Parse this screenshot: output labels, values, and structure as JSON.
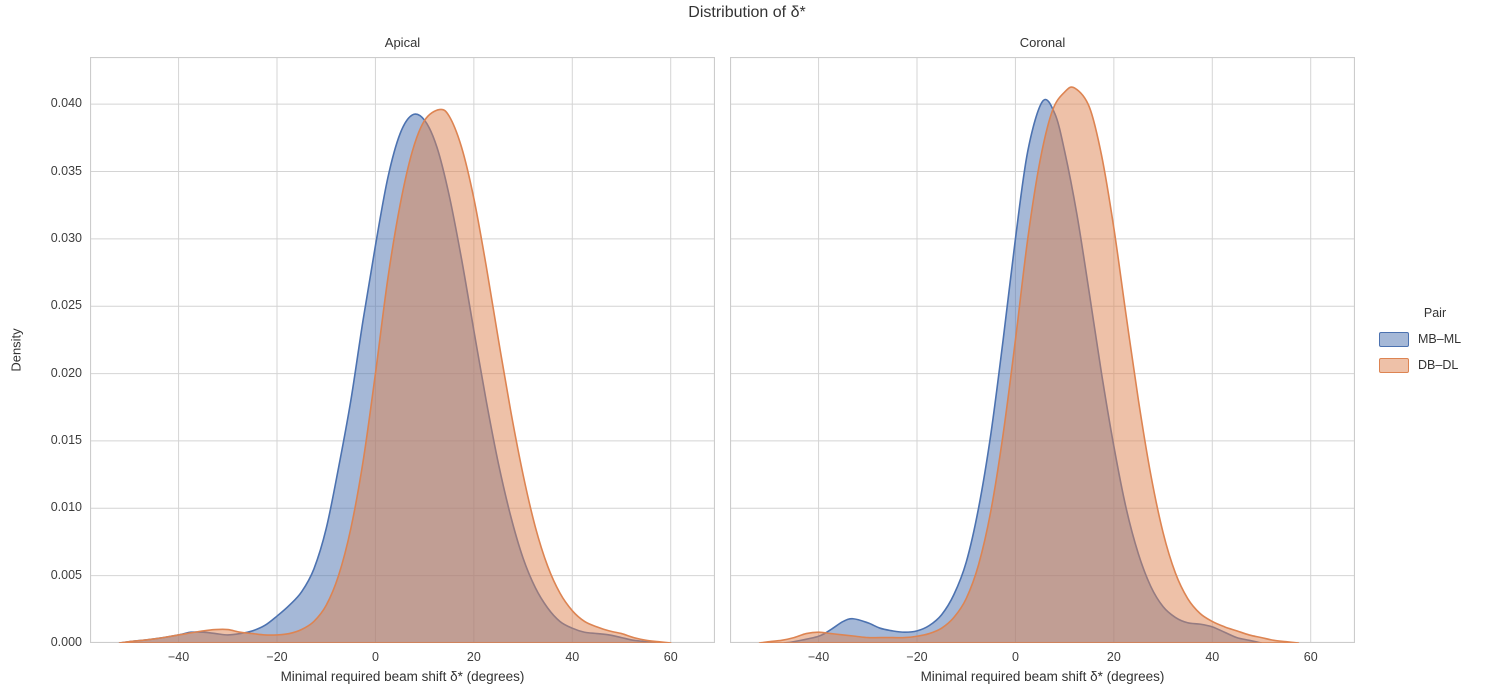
{
  "figure": {
    "title": "Distribution of δ*",
    "ylabel": "Density"
  },
  "legend": {
    "title": "Pair",
    "entries": [
      {
        "label": "MB–ML",
        "color": "#4C72B0"
      },
      {
        "label": "DB–DL",
        "color": "#DD8452"
      }
    ]
  },
  "colors": {
    "blue": "#4C72B0",
    "orange": "#DD8452",
    "grid": "#d4d4d4",
    "spine": "#cccccc",
    "text": "#333333",
    "fill_alpha": 0.5
  },
  "chart_data": [
    {
      "type": "area",
      "title": "Apical",
      "xlabel": "Minimal required beam shift δ* (degrees)",
      "ylabel": "Density",
      "xlim": [
        -58,
        69
      ],
      "ylim": [
        0,
        0.0435
      ],
      "x_ticks": [
        -40,
        -20,
        0,
        20,
        40,
        60
      ],
      "y_ticks": [
        0.0,
        0.005,
        0.01,
        0.015,
        0.02,
        0.025,
        0.03,
        0.035,
        0.04
      ],
      "grid": true,
      "legend_position": "center right outside",
      "series": [
        {
          "name": "MB–ML",
          "color": "#4C72B0",
          "peak": {
            "x": 7.5,
            "density": 0.0392
          },
          "points": [
            [
              -52,
              0
            ],
            [
              -50,
              0.0001
            ],
            [
              -45,
              0.0003
            ],
            [
              -40,
              0.0006
            ],
            [
              -37.5,
              0.0008
            ],
            [
              -35,
              0.0008
            ],
            [
              -32.5,
              0.0007
            ],
            [
              -30,
              0.0006
            ],
            [
              -27.5,
              0.0007
            ],
            [
              -25,
              0.0009
            ],
            [
              -22.5,
              0.0013
            ],
            [
              -20,
              0.002
            ],
            [
              -17.5,
              0.0028
            ],
            [
              -15,
              0.0038
            ],
            [
              -12.5,
              0.0055
            ],
            [
              -10,
              0.0085
            ],
            [
              -7.5,
              0.013
            ],
            [
              -5,
              0.018
            ],
            [
              -2.5,
              0.024
            ],
            [
              0,
              0.0295
            ],
            [
              2.5,
              0.0345
            ],
            [
              5,
              0.0378
            ],
            [
              7.5,
              0.0392
            ],
            [
              10,
              0.0388
            ],
            [
              12.5,
              0.0368
            ],
            [
              15,
              0.0332
            ],
            [
              17.5,
              0.0285
            ],
            [
              20,
              0.0232
            ],
            [
              22.5,
              0.018
            ],
            [
              25,
              0.0133
            ],
            [
              27.5,
              0.0094
            ],
            [
              30,
              0.0063
            ],
            [
              32.5,
              0.0041
            ],
            [
              35,
              0.0026
            ],
            [
              37.5,
              0.0016
            ],
            [
              40,
              0.0011
            ],
            [
              42.5,
              0.0008
            ],
            [
              45,
              0.0007
            ],
            [
              47.5,
              0.0006
            ],
            [
              50,
              0.0004
            ],
            [
              52.5,
              0.0002
            ],
            [
              55,
              0.0001
            ],
            [
              57.5,
              0
            ]
          ]
        },
        {
          "name": "DB–DL",
          "color": "#DD8452",
          "peak": {
            "x": 13,
            "density": 0.0396
          },
          "points": [
            [
              -52,
              0
            ],
            [
              -50,
              0.0001
            ],
            [
              -45,
              0.0003
            ],
            [
              -40,
              0.0006
            ],
            [
              -35,
              0.0009
            ],
            [
              -32.5,
              0.001
            ],
            [
              -30,
              0.001
            ],
            [
              -27.5,
              0.0008
            ],
            [
              -25,
              0.0007
            ],
            [
              -22.5,
              0.0006
            ],
            [
              -20,
              0.0006
            ],
            [
              -17.5,
              0.0007
            ],
            [
              -15,
              0.001
            ],
            [
              -12.5,
              0.0016
            ],
            [
              -10,
              0.0028
            ],
            [
              -7.5,
              0.005
            ],
            [
              -5,
              0.0085
            ],
            [
              -2.5,
              0.0135
            ],
            [
              0,
              0.02
            ],
            [
              2.5,
              0.027
            ],
            [
              5,
              0.0325
            ],
            [
              7.5,
              0.0365
            ],
            [
              10,
              0.0388
            ],
            [
              13,
              0.0396
            ],
            [
              15,
              0.0391
            ],
            [
              17.5,
              0.0368
            ],
            [
              20,
              0.033
            ],
            [
              22.5,
              0.028
            ],
            [
              25,
              0.0225
            ],
            [
              27.5,
              0.0172
            ],
            [
              30,
              0.0125
            ],
            [
              32.5,
              0.0086
            ],
            [
              35,
              0.0057
            ],
            [
              37.5,
              0.0037
            ],
            [
              40,
              0.0024
            ],
            [
              42.5,
              0.0016
            ],
            [
              45,
              0.0012
            ],
            [
              47.5,
              0.0009
            ],
            [
              50,
              0.0007
            ],
            [
              52.5,
              0.0004
            ],
            [
              55,
              0.0002
            ],
            [
              57.5,
              0.0001
            ],
            [
              60,
              0
            ]
          ]
        }
      ]
    },
    {
      "type": "area",
      "title": "Coronal",
      "xlabel": "Minimal required beam shift δ* (degrees)",
      "ylabel": "Density",
      "xlim": [
        -58,
        69
      ],
      "ylim": [
        0,
        0.0435
      ],
      "x_ticks": [
        -40,
        -20,
        0,
        20,
        40,
        60
      ],
      "y_ticks": [
        0.0,
        0.005,
        0.01,
        0.015,
        0.02,
        0.025,
        0.03,
        0.035,
        0.04
      ],
      "grid": true,
      "series": [
        {
          "name": "MB–ML",
          "color": "#4C72B0",
          "peak": {
            "x": 5.5,
            "density": 0.0402
          },
          "points": [
            [
              -47,
              0
            ],
            [
              -45,
              0.0001
            ],
            [
              -40,
              0.0005
            ],
            [
              -37.5,
              0.001
            ],
            [
              -35,
              0.0016
            ],
            [
              -33,
              0.0018
            ],
            [
              -30,
              0.0015
            ],
            [
              -27.5,
              0.0011
            ],
            [
              -25,
              0.0009
            ],
            [
              -22.5,
              0.0008
            ],
            [
              -20,
              0.0009
            ],
            [
              -17.5,
              0.0013
            ],
            [
              -15,
              0.0021
            ],
            [
              -12.5,
              0.0036
            ],
            [
              -10,
              0.006
            ],
            [
              -7.5,
              0.01
            ],
            [
              -5,
              0.0155
            ],
            [
              -2.5,
              0.0225
            ],
            [
              0,
              0.03
            ],
            [
              2.5,
              0.0365
            ],
            [
              5.5,
              0.0402
            ],
            [
              8,
              0.0393
            ],
            [
              10,
              0.0365
            ],
            [
              12.5,
              0.0318
            ],
            [
              15,
              0.026
            ],
            [
              17.5,
              0.02
            ],
            [
              20,
              0.0146
            ],
            [
              22.5,
              0.01
            ],
            [
              25,
              0.0066
            ],
            [
              27.5,
              0.0042
            ],
            [
              30,
              0.0027
            ],
            [
              32.5,
              0.0019
            ],
            [
              35,
              0.0015
            ],
            [
              37.5,
              0.0014
            ],
            [
              40,
              0.0012
            ],
            [
              42.5,
              0.0008
            ],
            [
              45,
              0.0004
            ],
            [
              47.5,
              0.0002
            ],
            [
              50,
              0
            ]
          ]
        },
        {
          "name": "DB–DL",
          "color": "#DD8452",
          "peak": {
            "x": 12,
            "density": 0.0412
          },
          "points": [
            [
              -52,
              0
            ],
            [
              -50,
              0.0001
            ],
            [
              -47.5,
              0.0002
            ],
            [
              -45,
              0.0004
            ],
            [
              -42.5,
              0.0007
            ],
            [
              -40,
              0.0008
            ],
            [
              -37.5,
              0.0007
            ],
            [
              -35,
              0.0006
            ],
            [
              -32.5,
              0.0005
            ],
            [
              -30,
              0.0004
            ],
            [
              -27.5,
              0.0004
            ],
            [
              -25,
              0.0004
            ],
            [
              -22.5,
              0.0004
            ],
            [
              -20,
              0.0005
            ],
            [
              -17.5,
              0.0007
            ],
            [
              -15,
              0.0011
            ],
            [
              -12.5,
              0.0019
            ],
            [
              -10,
              0.0033
            ],
            [
              -7.5,
              0.0058
            ],
            [
              -5,
              0.0098
            ],
            [
              -2.5,
              0.0155
            ],
            [
              0,
              0.0225
            ],
            [
              2.5,
              0.03
            ],
            [
              5,
              0.0358
            ],
            [
              7.5,
              0.0395
            ],
            [
              10,
              0.0409
            ],
            [
              12,
              0.0412
            ],
            [
              15,
              0.0398
            ],
            [
              17.5,
              0.0362
            ],
            [
              20,
              0.0308
            ],
            [
              22.5,
              0.0243
            ],
            [
              25,
              0.018
            ],
            [
              27.5,
              0.0125
            ],
            [
              30,
              0.0082
            ],
            [
              32.5,
              0.0052
            ],
            [
              35,
              0.0033
            ],
            [
              37.5,
              0.0022
            ],
            [
              40,
              0.0016
            ],
            [
              42.5,
              0.0012
            ],
            [
              45,
              0.0009
            ],
            [
              47.5,
              0.0006
            ],
            [
              50,
              0.0004
            ],
            [
              52.5,
              0.0002
            ],
            [
              55,
              0.0001
            ],
            [
              57.5,
              0
            ]
          ]
        }
      ]
    }
  ]
}
